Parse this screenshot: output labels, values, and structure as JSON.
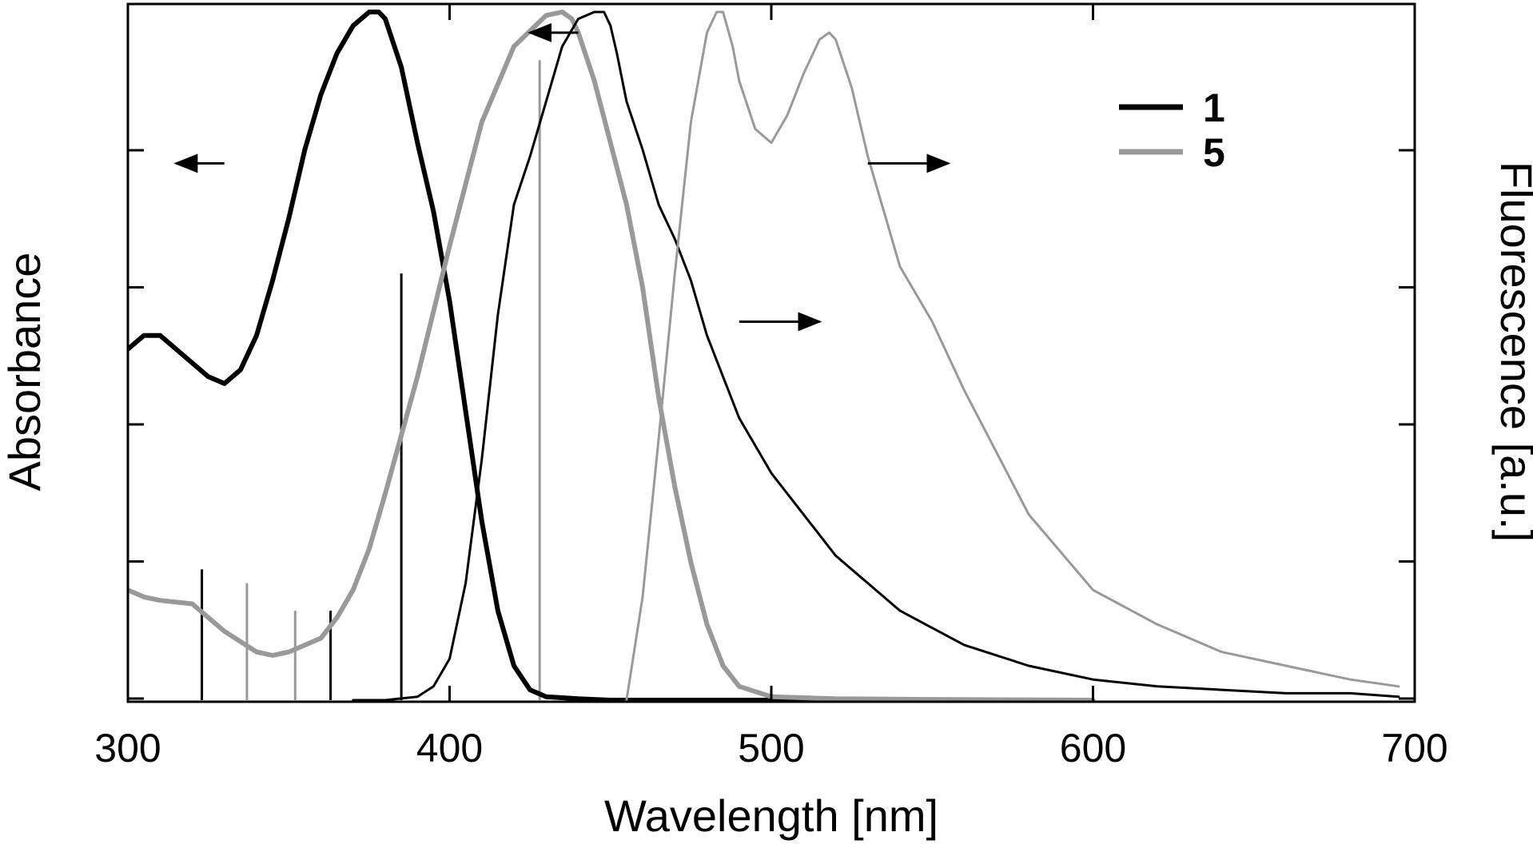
{
  "chart_data": {
    "type": "line",
    "title": "",
    "xlabel": "Wavelength [nm]",
    "ylabel_left": "Absorbance",
    "ylabel_right": "Fluorescence [a.u.]",
    "xlim": [
      300,
      700
    ],
    "ylim": [
      0,
      1
    ],
    "x_ticks": [
      300,
      400,
      500,
      600,
      700
    ],
    "y_ticks_count": 5,
    "grid": false,
    "legend_position": "top-right",
    "legend": [
      {
        "label": "1",
        "color": "#000000"
      },
      {
        "label": "5",
        "color": "#999999"
      }
    ],
    "series": [
      {
        "compound": "1",
        "kind": "absorbance",
        "axis": "left",
        "color": "#000000",
        "weight": "thick",
        "x": [
          300,
          305,
          310,
          315,
          320,
          325,
          330,
          335,
          340,
          345,
          350,
          355,
          360,
          365,
          370,
          375,
          378,
          380,
          385,
          390,
          395,
          400,
          405,
          410,
          415,
          420,
          425,
          430,
          440,
          450,
          475,
          500,
          550,
          600
        ],
        "y": [
          0.51,
          0.53,
          0.53,
          0.51,
          0.49,
          0.47,
          0.46,
          0.48,
          0.53,
          0.61,
          0.7,
          0.8,
          0.88,
          0.94,
          0.98,
          1.0,
          1.0,
          0.99,
          0.92,
          0.81,
          0.71,
          0.58,
          0.42,
          0.26,
          0.13,
          0.05,
          0.015,
          0.005,
          0.002,
          0.0,
          0.0,
          0.0,
          0.0,
          0.0
        ]
      },
      {
        "compound": "5",
        "kind": "absorbance",
        "axis": "left",
        "color": "#999999",
        "weight": "thick",
        "x": [
          300,
          305,
          310,
          320,
          330,
          340,
          345,
          350,
          355,
          360,
          365,
          370,
          375,
          380,
          390,
          400,
          410,
          420,
          430,
          435,
          438,
          440,
          445,
          450,
          455,
          460,
          465,
          470,
          475,
          480,
          485,
          490,
          500,
          520,
          550,
          600
        ],
        "y": [
          0.16,
          0.15,
          0.145,
          0.14,
          0.1,
          0.07,
          0.065,
          0.07,
          0.08,
          0.09,
          0.12,
          0.16,
          0.22,
          0.3,
          0.47,
          0.66,
          0.84,
          0.95,
          0.995,
          1.0,
          0.99,
          0.97,
          0.9,
          0.81,
          0.72,
          0.6,
          0.44,
          0.31,
          0.2,
          0.11,
          0.05,
          0.02,
          0.005,
          0.002,
          0.001,
          0.0
        ]
      },
      {
        "compound": "1",
        "kind": "fluorescence",
        "axis": "right",
        "color": "#000000",
        "weight": "thin",
        "x": [
          370,
          380,
          390,
          395,
          400,
          405,
          410,
          415,
          420,
          425,
          430,
          435,
          440,
          445,
          448,
          450,
          452,
          455,
          460,
          465,
          470,
          475,
          480,
          490,
          500,
          520,
          540,
          560,
          580,
          600,
          620,
          640,
          660,
          680,
          695
        ],
        "y": [
          0.0,
          0.0,
          0.005,
          0.02,
          0.06,
          0.17,
          0.35,
          0.56,
          0.72,
          0.79,
          0.87,
          0.95,
          0.99,
          1.0,
          1.0,
          0.98,
          0.94,
          0.87,
          0.8,
          0.72,
          0.67,
          0.61,
          0.53,
          0.41,
          0.33,
          0.21,
          0.13,
          0.08,
          0.05,
          0.03,
          0.02,
          0.015,
          0.01,
          0.01,
          0.005
        ]
      },
      {
        "compound": "5",
        "kind": "fluorescence",
        "axis": "right",
        "color": "#999999",
        "weight": "thin",
        "x": [
          455,
          460,
          465,
          470,
          475,
          480,
          483,
          485,
          488,
          490,
          495,
          500,
          505,
          510,
          515,
          518,
          520,
          525,
          530,
          535,
          540,
          550,
          560,
          570,
          580,
          600,
          620,
          640,
          660,
          680,
          695
        ],
        "y": [
          0.0,
          0.15,
          0.38,
          0.62,
          0.84,
          0.97,
          1.0,
          1.0,
          0.95,
          0.9,
          0.83,
          0.81,
          0.85,
          0.91,
          0.96,
          0.97,
          0.96,
          0.89,
          0.79,
          0.71,
          0.63,
          0.55,
          0.45,
          0.36,
          0.27,
          0.16,
          0.11,
          0.07,
          0.05,
          0.03,
          0.02
        ]
      }
    ],
    "stick_spectra": [
      {
        "compound": "1",
        "color": "#000000",
        "x": [
          323,
          363,
          385
        ],
        "y": [
          0.19,
          0.13,
          0.62
        ]
      },
      {
        "compound": "5",
        "color": "#999999",
        "x": [
          337,
          352,
          428
        ],
        "y": [
          0.17,
          0.13,
          0.93
        ]
      }
    ],
    "annotations": [
      {
        "type": "arrow",
        "direction": "left",
        "x": [
          315,
          330
        ],
        "y": 0.78,
        "color": "#000000"
      },
      {
        "type": "arrow",
        "direction": "left",
        "x": [
          425,
          440
        ],
        "y": 0.97,
        "color": "#000000"
      },
      {
        "type": "arrow",
        "direction": "right",
        "x": [
          530,
          555
        ],
        "y": 0.78,
        "color": "#000000"
      },
      {
        "type": "arrow",
        "direction": "right",
        "x": [
          490,
          515
        ],
        "y": 0.55,
        "color": "#000000"
      }
    ]
  }
}
